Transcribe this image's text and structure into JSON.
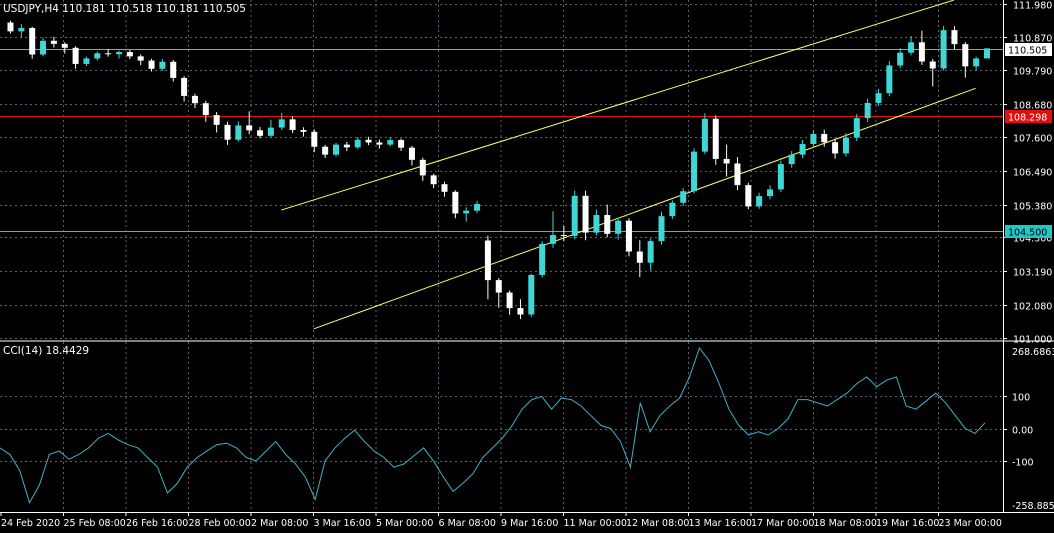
{
  "header": {
    "symbol_label": "USDJPY,H4  110.181 110.518 110.181 110.505"
  },
  "indicator": {
    "label": "CCI(14) 18.4429"
  },
  "colors": {
    "background": "#000000",
    "grid": "#5a6470",
    "axis_text": "#ffffff",
    "bull_candle": "#3fd6d6",
    "bear_candle": "#ffffff",
    "trendline": "#ffff66",
    "red_line": "#e01010",
    "cyan_line": "#20c8c8",
    "bid_line": "#8aa0b8",
    "cci_line": "#3fb0c8"
  },
  "chart_data": [
    {
      "type": "candlestick",
      "title": "USDJPY,H4",
      "ohlc_readout": [
        110.181,
        110.518,
        110.181,
        110.505
      ],
      "ylim": [
        100.9,
        112.1
      ],
      "y_ticks": [
        {
          "value": 111.98,
          "label": "111.980"
        },
        {
          "value": 110.87,
          "label": "110.870"
        },
        {
          "value": 109.79,
          "label": "109.790"
        },
        {
          "value": 108.68,
          "label": "108.680"
        },
        {
          "value": 107.6,
          "label": "107.600"
        },
        {
          "value": 106.49,
          "label": "106.490"
        },
        {
          "value": 105.38,
          "label": "105.380"
        },
        {
          "value": 104.3,
          "label": "104.300"
        },
        {
          "value": 103.19,
          "label": "103.190"
        },
        {
          "value": 102.08,
          "label": "102.080"
        },
        {
          "value": 101.0,
          "label": "101.000"
        }
      ],
      "x_tick_labels": [
        "24 Feb 2020",
        "25 Feb 08:00",
        "26 Feb 16:00",
        "28 Feb 00:00",
        "2 Mar 08:00",
        "3 Mar 16:00",
        "5 Mar 00:00",
        "6 Mar 08:00",
        "9 Mar 16:00",
        "11 Mar 00:00",
        "12 Mar 08:00",
        "13 Mar 16:00",
        "17 Mar 00:00",
        "18 Mar 08:00",
        "19 Mar 16:00",
        "23 Mar 00:00"
      ],
      "price_lines": [
        {
          "name": "bid",
          "value": 110.505,
          "label": "110.505"
        },
        {
          "name": "resistance",
          "value": 108.298,
          "label": "108.298"
        },
        {
          "name": "support",
          "value": 104.5,
          "label": "104.500"
        }
      ],
      "trend_channel": {
        "upper": {
          "from": [
            25,
            105.2
          ],
          "to": [
            87,
            112.1
          ]
        },
        "lower": {
          "from": [
            28,
            101.3
          ],
          "to": [
            89,
            109.2
          ]
        }
      },
      "candles": [
        [
          111.36,
          111.42,
          111.0,
          111.07
        ],
        [
          111.07,
          111.31,
          110.86,
          111.18
        ],
        [
          111.18,
          111.22,
          110.17,
          110.31
        ],
        [
          110.31,
          110.86,
          110.25,
          110.76
        ],
        [
          110.76,
          110.89,
          110.54,
          110.66
        ],
        [
          110.66,
          110.71,
          110.34,
          110.53
        ],
        [
          110.53,
          110.58,
          109.84,
          110.0
        ],
        [
          110.0,
          110.24,
          109.93,
          110.18
        ],
        [
          110.18,
          110.41,
          110.11,
          110.35
        ],
        [
          110.35,
          110.49,
          110.24,
          110.32
        ],
        [
          110.32,
          110.44,
          110.18,
          110.39
        ],
        [
          110.39,
          110.46,
          110.16,
          110.25
        ],
        [
          110.25,
          110.31,
          109.96,
          110.11
        ],
        [
          110.11,
          110.17,
          109.75,
          109.84
        ],
        [
          109.84,
          110.16,
          109.78,
          110.07
        ],
        [
          110.07,
          110.13,
          109.42,
          109.54
        ],
        [
          109.54,
          109.6,
          108.77,
          108.95
        ],
        [
          108.95,
          109.02,
          108.55,
          108.71
        ],
        [
          108.71,
          108.79,
          108.1,
          108.32
        ],
        [
          108.32,
          108.42,
          107.75,
          108.0
        ],
        [
          108.0,
          108.1,
          107.34,
          107.51
        ],
        [
          107.51,
          108.11,
          107.45,
          107.98
        ],
        [
          107.98,
          108.44,
          107.69,
          107.82
        ],
        [
          107.82,
          107.93,
          107.56,
          107.64
        ],
        [
          107.64,
          108.17,
          107.58,
          107.91
        ],
        [
          107.91,
          108.39,
          107.83,
          108.18
        ],
        [
          108.18,
          108.28,
          107.73,
          107.83
        ],
        [
          107.83,
          107.92,
          107.61,
          107.77
        ],
        [
          107.77,
          107.85,
          107.1,
          107.28
        ],
        [
          107.28,
          107.34,
          106.91,
          107.02
        ],
        [
          107.02,
          107.41,
          106.96,
          107.35
        ],
        [
          107.35,
          107.44,
          107.14,
          107.26
        ],
        [
          107.26,
          107.6,
          107.2,
          107.51
        ],
        [
          107.51,
          107.61,
          107.33,
          107.42
        ],
        [
          107.42,
          107.52,
          107.22,
          107.35
        ],
        [
          107.35,
          107.6,
          107.29,
          107.5
        ],
        [
          107.5,
          107.55,
          107.14,
          107.25
        ],
        [
          107.25,
          107.31,
          106.67,
          106.85
        ],
        [
          106.85,
          106.92,
          106.16,
          106.34
        ],
        [
          106.34,
          106.39,
          105.92,
          106.05
        ],
        [
          106.05,
          106.13,
          105.64,
          105.8
        ],
        [
          105.8,
          105.85,
          104.93,
          105.09
        ],
        [
          105.09,
          105.29,
          104.82,
          105.18
        ],
        [
          105.18,
          105.5,
          105.1,
          105.4
        ],
        [
          104.2,
          104.36,
          102.27,
          102.9
        ],
        [
          102.9,
          102.97,
          101.99,
          102.49
        ],
        [
          102.49,
          102.56,
          101.76,
          101.98
        ],
        [
          101.98,
          102.27,
          101.62,
          101.77
        ],
        [
          101.77,
          103.1,
          101.69,
          103.07
        ],
        [
          103.07,
          104.18,
          102.98,
          104.09
        ],
        [
          104.09,
          105.16,
          103.96,
          104.38
        ],
        [
          104.38,
          104.68,
          104.19,
          104.35
        ],
        [
          104.35,
          105.84,
          104.24,
          105.67
        ],
        [
          105.67,
          105.84,
          104.21,
          104.46
        ],
        [
          104.46,
          105.21,
          104.36,
          105.04
        ],
        [
          105.04,
          105.38,
          104.31,
          104.42
        ],
        [
          104.42,
          104.95,
          104.23,
          104.85
        ],
        [
          104.85,
          104.93,
          103.68,
          103.84
        ],
        [
          103.84,
          104.21,
          103.0,
          103.47
        ],
        [
          103.47,
          104.27,
          103.21,
          104.18
        ],
        [
          104.18,
          105.15,
          104.06,
          105.0
        ],
        [
          105.0,
          105.52,
          104.91,
          105.44
        ],
        [
          105.44,
          105.93,
          105.33,
          105.82
        ],
        [
          105.82,
          107.23,
          105.74,
          107.12
        ],
        [
          107.12,
          108.38,
          107.03,
          108.2
        ],
        [
          108.2,
          108.31,
          106.69,
          106.88
        ],
        [
          106.88,
          107.35,
          106.3,
          106.73
        ],
        [
          106.73,
          106.94,
          105.86,
          106.02
        ],
        [
          106.02,
          106.1,
          105.23,
          105.32
        ],
        [
          105.32,
          105.77,
          105.24,
          105.66
        ],
        [
          105.66,
          106.01,
          105.55,
          105.88
        ],
        [
          105.88,
          106.82,
          105.79,
          106.71
        ],
        [
          106.71,
          107.14,
          106.59,
          107.02
        ],
        [
          107.02,
          107.5,
          106.9,
          107.37
        ],
        [
          107.37,
          107.82,
          107.26,
          107.7
        ],
        [
          107.7,
          107.84,
          107.28,
          107.43
        ],
        [
          107.43,
          107.55,
          106.89,
          107.06
        ],
        [
          107.06,
          107.73,
          106.96,
          107.58
        ],
        [
          107.58,
          108.36,
          107.47,
          108.22
        ],
        [
          108.22,
          108.86,
          108.1,
          108.72
        ],
        [
          108.72,
          109.18,
          108.63,
          109.04
        ],
        [
          109.04,
          110.09,
          108.94,
          109.95
        ],
        [
          109.95,
          110.52,
          109.86,
          110.37
        ],
        [
          110.37,
          110.92,
          110.28,
          110.71
        ],
        [
          110.71,
          111.09,
          109.97,
          110.08
        ],
        [
          110.08,
          110.16,
          109.26,
          109.85
        ],
        [
          109.85,
          111.25,
          109.78,
          111.11
        ],
        [
          111.11,
          111.24,
          110.49,
          110.65
        ],
        [
          110.65,
          110.72,
          109.55,
          109.92
        ],
        [
          109.92,
          110.24,
          109.78,
          110.18
        ],
        [
          110.18,
          110.52,
          110.18,
          110.51
        ]
      ]
    },
    {
      "type": "line",
      "title": "CCI(14) 18.4429",
      "ylim": [
        -258.885,
        268.6863
      ],
      "y_ticks": [
        {
          "value": 268.6863,
          "label": "268.6863"
        },
        {
          "value": 100,
          "label": "100"
        },
        {
          "value": 0,
          "label": "0.00"
        },
        {
          "value": -100,
          "label": "-100"
        },
        {
          "value": -258.885,
          "label": "-258.885"
        }
      ],
      "last_value": 18.4429,
      "values": [
        -60,
        -80,
        -130,
        -230,
        -175,
        -80,
        -70,
        -95,
        -80,
        -60,
        -30,
        -15,
        -35,
        -50,
        -60,
        -90,
        -120,
        -200,
        -170,
        -120,
        -90,
        -70,
        -50,
        -45,
        -60,
        -90,
        -100,
        -70,
        -40,
        -80,
        -110,
        -150,
        -220,
        -100,
        -60,
        -30,
        -5,
        -40,
        -70,
        -90,
        -120,
        -110,
        -85,
        -60,
        -100,
        -150,
        -195,
        -170,
        -140,
        -90,
        -60,
        -30,
        10,
        60,
        90,
        100,
        60,
        95,
        90,
        70,
        40,
        10,
        0,
        -40,
        -120,
        80,
        -10,
        40,
        70,
        95,
        160,
        250,
        210,
        140,
        60,
        10,
        -20,
        -10,
        -20,
        0,
        30,
        90,
        90,
        80,
        70,
        90,
        110,
        140,
        160,
        130,
        150,
        160,
        70,
        60,
        85,
        110,
        80,
        40,
        0,
        -15,
        18
      ]
    }
  ]
}
